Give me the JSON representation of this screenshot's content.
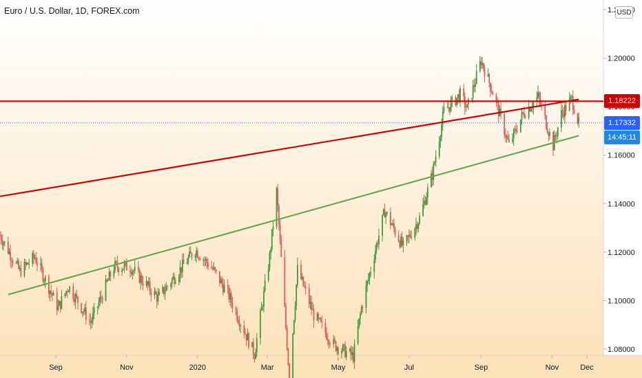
{
  "header": {
    "title": "Euro / U.S. Dollar, 1D, FOREX.com"
  },
  "price_axis": {
    "currency": "USD",
    "ticks": [
      "1.22000",
      "1.20000",
      "1.18000",
      "1.16000",
      "1.14000",
      "1.12000",
      "1.10000",
      "1.08000"
    ]
  },
  "time_axis": {
    "ticks": [
      "Sep",
      "Nov",
      "2020",
      "Mar",
      "May",
      "Jul",
      "Sep",
      "Nov",
      "Dec"
    ]
  },
  "tags": {
    "resistance": "1.18222",
    "last_price": "1.17332",
    "countdown": "14:45:11"
  },
  "colors": {
    "up": "#26a69a",
    "candle_up": "#3c9a3c",
    "candle_down": "#e05a5a",
    "resistance": "#cc0000",
    "support_line": "#6aa84f",
    "last_price": "#2962ff",
    "countdown": "#1e88e5"
  },
  "chart_data": {
    "type": "candlestick",
    "title": "Euro / U.S. Dollar, 1D, FOREX.com",
    "ylim": [
      1.068,
      1.222
    ],
    "y_ticks": [
      1.22,
      1.2,
      1.18,
      1.16,
      1.14,
      1.12,
      1.1,
      1.08
    ],
    "x_ticks": [
      "Sep",
      "Nov",
      "2020",
      "Mar",
      "May",
      "Jul",
      "Sep",
      "Nov",
      "Dec"
    ],
    "grid": false,
    "horizontal_lines": [
      {
        "label": "resistance",
        "value": 1.18222
      },
      {
        "label": "last price",
        "value": 1.17332
      }
    ],
    "trendlines": [
      {
        "name": "upper trendline",
        "from": {
          "date": "2019-07-15",
          "price": 1.143
        },
        "to": {
          "date": "2020-11-24",
          "price": 1.183
        }
      },
      {
        "name": "support trendline",
        "from": {
          "date": "2019-07-22",
          "price": 1.1025
        },
        "to": {
          "date": "2020-11-24",
          "price": 1.168
        }
      }
    ],
    "close_path": [
      [
        "2019-07-15",
        1.127
      ],
      [
        "2019-08-01",
        1.112
      ],
      [
        "2019-08-14",
        1.118
      ],
      [
        "2019-09-03",
        1.097
      ],
      [
        "2019-09-12",
        1.106
      ],
      [
        "2019-10-01",
        1.091
      ],
      [
        "2019-10-21",
        1.114
      ],
      [
        "2019-11-04",
        1.114
      ],
      [
        "2019-11-28",
        1.101
      ],
      [
        "2019-12-30",
        1.121
      ],
      [
        "2020-01-14",
        1.113
      ],
      [
        "2020-01-27",
        1.103
      ],
      [
        "2020-02-19",
        1.078
      ],
      [
        "2020-03-03",
        1.118
      ],
      [
        "2020-03-09",
        1.145
      ],
      [
        "2020-03-20",
        1.068
      ],
      [
        "2020-03-27",
        1.113
      ],
      [
        "2020-04-10",
        1.094
      ],
      [
        "2020-04-27",
        1.082
      ],
      [
        "2020-05-14",
        1.077
      ],
      [
        "2020-05-21",
        1.097
      ],
      [
        "2020-06-10",
        1.137
      ],
      [
        "2020-06-26",
        1.122
      ],
      [
        "2020-07-10",
        1.134
      ],
      [
        "2020-07-21",
        1.152
      ],
      [
        "2020-07-31",
        1.178
      ],
      [
        "2020-08-14",
        1.185
      ],
      [
        "2020-08-20",
        1.179
      ],
      [
        "2020-09-01",
        1.199
      ],
      [
        "2020-09-11",
        1.186
      ],
      [
        "2020-09-25",
        1.164
      ],
      [
        "2020-10-07",
        1.177
      ],
      [
        "2020-10-20",
        1.184
      ],
      [
        "2020-11-02",
        1.164
      ],
      [
        "2020-11-09",
        1.177
      ],
      [
        "2020-11-18",
        1.183
      ],
      [
        "2020-11-24",
        1.173
      ]
    ]
  }
}
